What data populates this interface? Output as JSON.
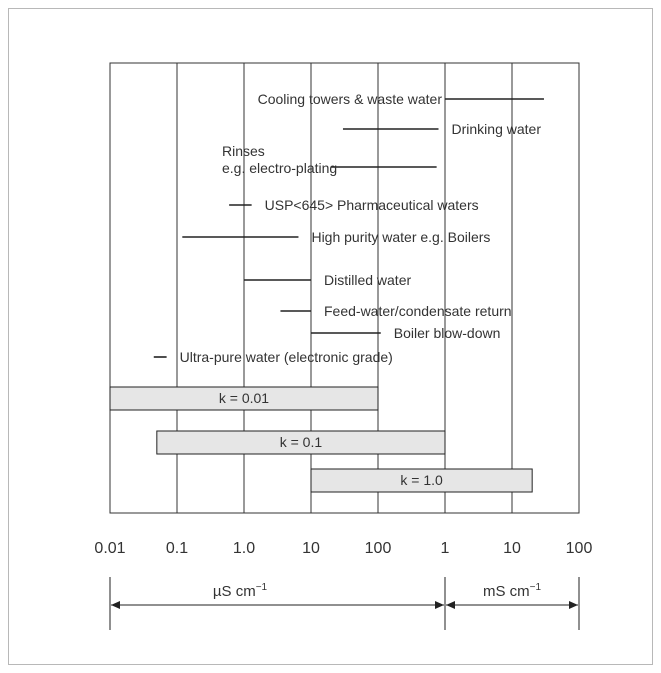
{
  "chart_data": {
    "type": "range",
    "title": "",
    "x_scale": "log",
    "xlim_uS_per_cm": [
      0.01,
      100000
    ],
    "grid": "vertical lines at each decade",
    "tick_labels": [
      "0.01",
      "0.1",
      "1.0",
      "10",
      "100",
      "1",
      "10",
      "100"
    ],
    "unit_ranges": [
      {
        "label": "µS cm",
        "exponent": "−1",
        "from": 0.01,
        "to": 1000
      },
      {
        "label": "mS cm",
        "exponent": "−1",
        "from": 1000,
        "to": 100000
      }
    ],
    "applications": [
      {
        "label": "Cooling towers & waste water",
        "from": 1000,
        "to": 30000,
        "label_side": "left"
      },
      {
        "label": "Drinking water",
        "from": 30,
        "to": 800,
        "label_side": "right"
      },
      {
        "label": "Rinses",
        "label2": "e.g. electro-plating",
        "from": 20,
        "to": 750,
        "label_side": "left"
      },
      {
        "label": "USP<645> Pharmaceutical waters",
        "from": 0.6,
        "to": 1.3,
        "label_side": "right"
      },
      {
        "label": "High purity water e.g. Boilers",
        "from": 0.12,
        "to": 6.5,
        "label_side": "right"
      },
      {
        "label": "Distilled water",
        "from": 1.0,
        "to": 10,
        "label_side": "right"
      },
      {
        "label": "Feed-water/condensate return",
        "from": 3.5,
        "to": 10,
        "label_side": "right"
      },
      {
        "label": "Boiler blow-down",
        "from": 10,
        "to": 110,
        "label_side": "right"
      },
      {
        "label": "Ultra-pure water (electronic grade)",
        "from": 0.045,
        "to": 0.07,
        "label_side": "right"
      }
    ],
    "cell_constants": [
      {
        "label": "k = 0.01",
        "from": 0.01,
        "to": 100
      },
      {
        "label": "k = 0.1",
        "from": 0.05,
        "to": 1000
      },
      {
        "label": "k = 1.0",
        "from": 10,
        "to": 20000
      }
    ],
    "colors": {
      "bar_fill": "#e6e6e6",
      "line": "#222222",
      "grid": "#333333"
    }
  }
}
